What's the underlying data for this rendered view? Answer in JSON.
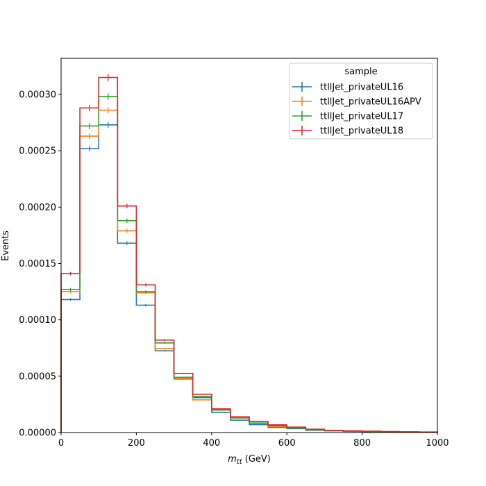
{
  "chart_data": {
    "type": "line",
    "style": "step-histogram",
    "xlabel_main": "m",
    "xlabel_sub": "tt",
    "xlabel_unit": " (GeV)",
    "ylabel": "Events",
    "xlim": [
      0,
      1000
    ],
    "ylim": [
      0,
      0.000332
    ],
    "x_ticks": [
      0,
      200,
      400,
      600,
      800,
      1000
    ],
    "x_tick_labels": [
      "0",
      "200",
      "400",
      "600",
      "800",
      "1000"
    ],
    "y_ticks": [
      0,
      5e-05,
      0.0001,
      0.00015,
      0.0002,
      0.00025,
      0.0003
    ],
    "y_tick_labels": [
      "0.00000",
      "0.00005",
      "0.00010",
      "0.00015",
      "0.00020",
      "0.00025",
      "0.00030"
    ],
    "grid": false,
    "legend": {
      "title": "sample",
      "placement": "top-right"
    },
    "bin_edges": [
      0,
      50,
      100,
      150,
      200,
      250,
      300,
      350,
      400,
      450,
      500,
      550,
      600,
      650,
      700,
      750,
      800,
      850,
      900,
      950,
      1000
    ],
    "series": [
      {
        "name": "ttllJet_privateUL16",
        "color": "#1f77b4",
        "values": [
          0.000118,
          0.000252,
          0.000273,
          0.000168,
          0.000113,
          7.25e-05,
          4.75e-05,
          3.1e-05,
          1.8e-05,
          1.1e-05,
          7e-06,
          4.5e-06,
          3.5e-06,
          2e-06,
          1.5e-06,
          1e-06,
          8e-07,
          6e-07,
          4e-07,
          3e-07
        ]
      },
      {
        "name": "ttllJet_privateUL16APV",
        "color": "#ff7f0e",
        "values": [
          0.000125,
          0.000263,
          0.000286,
          0.000179,
          0.000124,
          7.45e-05,
          4.8e-05,
          2.9e-05,
          2e-05,
          1.3e-05,
          8e-06,
          5.5e-06,
          4e-06,
          2.5e-06,
          1.8e-06,
          1.2e-06,
          9e-07,
          7e-07,
          5e-07,
          4e-07
        ]
      },
      {
        "name": "ttllJet_privateUL17",
        "color": "#2ca02c",
        "values": [
          0.000127,
          0.000272,
          0.000298,
          0.000188,
          0.000125,
          7.95e-05,
          4.9e-05,
          3.2e-05,
          2e-05,
          1.3e-05,
          8.5e-06,
          6e-06,
          4e-06,
          2.5e-06,
          1.8e-06,
          1.2e-06,
          9e-07,
          7e-07,
          5e-07,
          4e-07
        ]
      },
      {
        "name": "ttllJet_privateUL18",
        "color": "#d62728",
        "values": [
          0.000141,
          0.000288,
          0.000315,
          0.000201,
          0.000131,
          8.2e-05,
          5.25e-05,
          3.4e-05,
          2.1e-05,
          1.4e-05,
          9.8e-06,
          6.8e-06,
          4.8e-06,
          3e-06,
          2e-06,
          1.5e-06,
          1.2e-06,
          9e-07,
          7e-07,
          5e-07
        ]
      }
    ]
  }
}
